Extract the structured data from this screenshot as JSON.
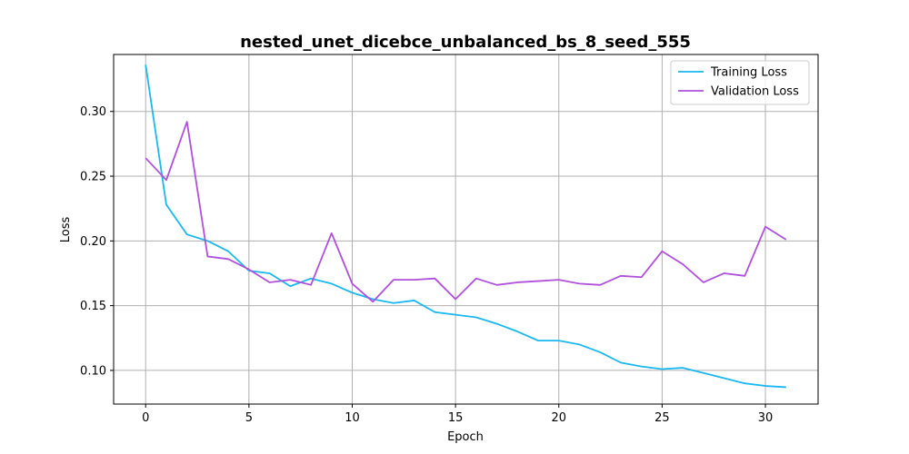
{
  "chart_data": {
    "type": "line",
    "title": "nested_unet_dicebce_unbalanced_bs_8_seed_555",
    "xlabel": "Epoch",
    "ylabel": "Loss",
    "xlim": [
      -1.55,
      32.55
    ],
    "ylim": [
      0.074,
      0.344
    ],
    "xticks": [
      0,
      5,
      10,
      15,
      20,
      25,
      30
    ],
    "xtick_labels": [
      "0",
      "5",
      "10",
      "15",
      "20",
      "25",
      "30"
    ],
    "yticks": [
      0.1,
      0.15,
      0.2,
      0.25,
      0.3
    ],
    "ytick_labels": [
      "0.10",
      "0.15",
      "0.20",
      "0.25",
      "0.30"
    ],
    "grid": true,
    "legend_position": "top-right",
    "x": [
      0,
      1,
      2,
      3,
      4,
      5,
      6,
      7,
      8,
      9,
      10,
      11,
      12,
      13,
      14,
      15,
      16,
      17,
      18,
      19,
      20,
      21,
      22,
      23,
      24,
      25,
      26,
      27,
      28,
      29,
      30,
      31
    ],
    "series": [
      {
        "name": "Training Loss",
        "color": "#1ab8f0",
        "values": [
          0.336,
          0.228,
          0.205,
          0.2,
          0.192,
          0.177,
          0.175,
          0.165,
          0.171,
          0.167,
          0.16,
          0.155,
          0.152,
          0.154,
          0.145,
          0.143,
          0.141,
          0.136,
          0.13,
          0.123,
          0.123,
          0.12,
          0.114,
          0.106,
          0.103,
          0.101,
          0.102,
          0.098,
          0.094,
          0.09,
          0.088,
          0.087
        ]
      },
      {
        "name": "Validation Loss",
        "color": "#b050dc",
        "values": [
          0.264,
          0.247,
          0.292,
          0.188,
          0.186,
          0.178,
          0.168,
          0.17,
          0.166,
          0.206,
          0.167,
          0.153,
          0.17,
          0.17,
          0.171,
          0.155,
          0.171,
          0.166,
          0.168,
          0.169,
          0.17,
          0.167,
          0.166,
          0.173,
          0.172,
          0.192,
          0.182,
          0.168,
          0.175,
          0.173,
          0.211,
          0.201
        ]
      }
    ]
  }
}
